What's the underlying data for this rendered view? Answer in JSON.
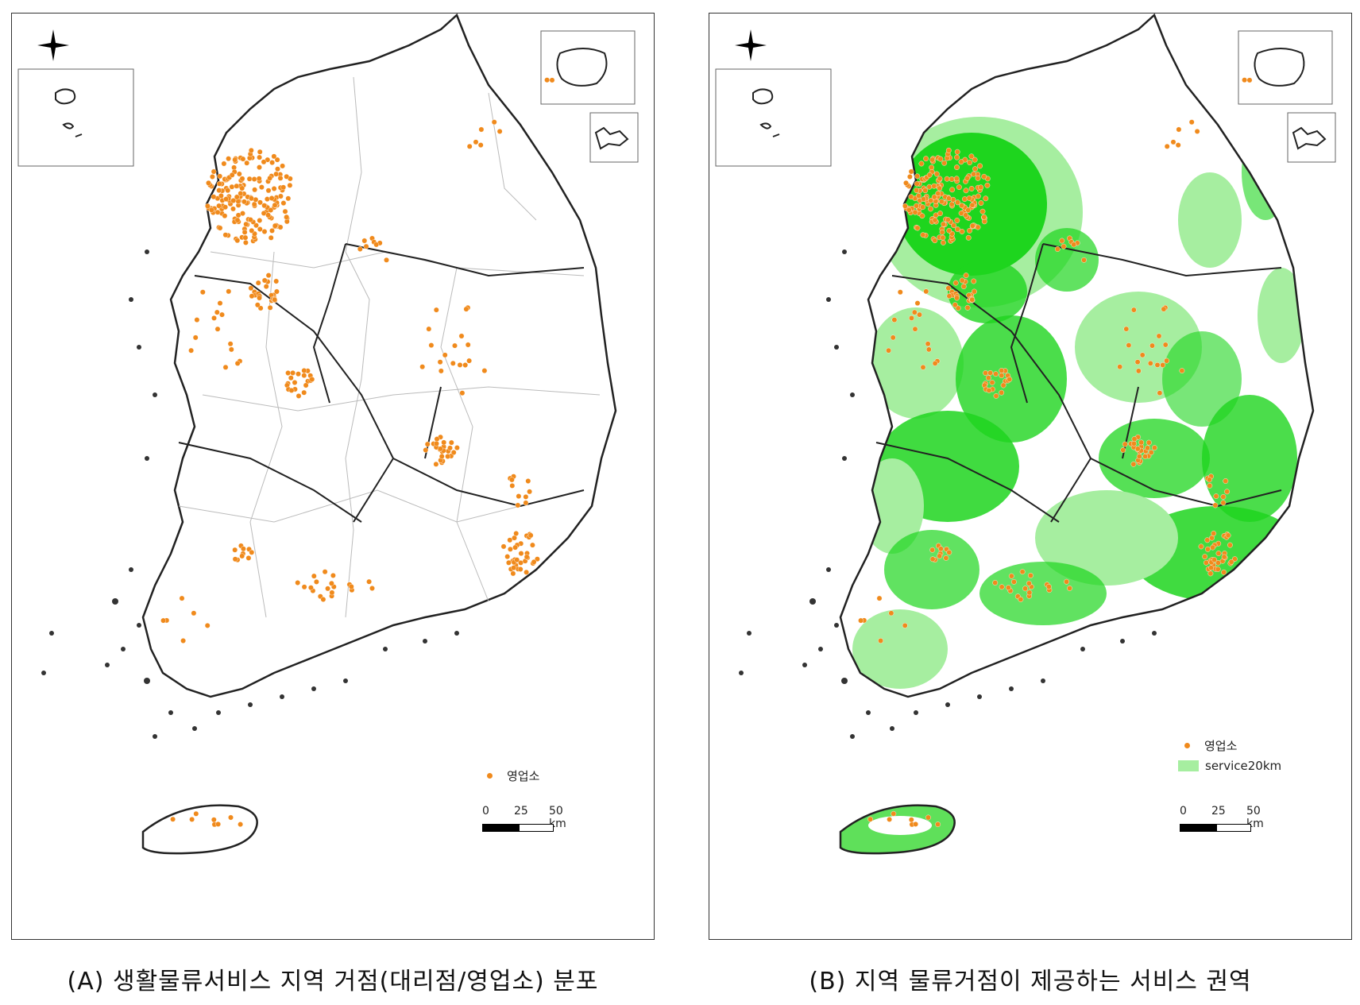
{
  "panels": [
    {
      "id": "A",
      "caption": "(A) 생활물류서비스 지역 거점(대리점/영업소) 분포",
      "legend": [
        {
          "label": "영업소",
          "symbol": "dot",
          "color": "#f08a1c"
        }
      ],
      "scale": {
        "labels": [
          "0",
          "25",
          "50 km"
        ]
      }
    },
    {
      "id": "B",
      "caption": "(B) 지역 물류거점이 제공하는 서비스 권역",
      "legend": [
        {
          "label": "영업소",
          "symbol": "dot",
          "color": "#f08a1c"
        },
        {
          "label": "service20km",
          "symbol": "area",
          "color": "#a6eea0"
        }
      ],
      "scale": {
        "labels": [
          "0",
          "25",
          "50 km"
        ]
      }
    }
  ],
  "colors": {
    "office_point": "#f08a1c",
    "service_area_light": "#a6eea0",
    "service_area_dark": "#1ed51e",
    "outline": "#222222",
    "district_line": "#bbbbbb"
  },
  "icons": {
    "north_arrow": "north-arrow-icon"
  }
}
